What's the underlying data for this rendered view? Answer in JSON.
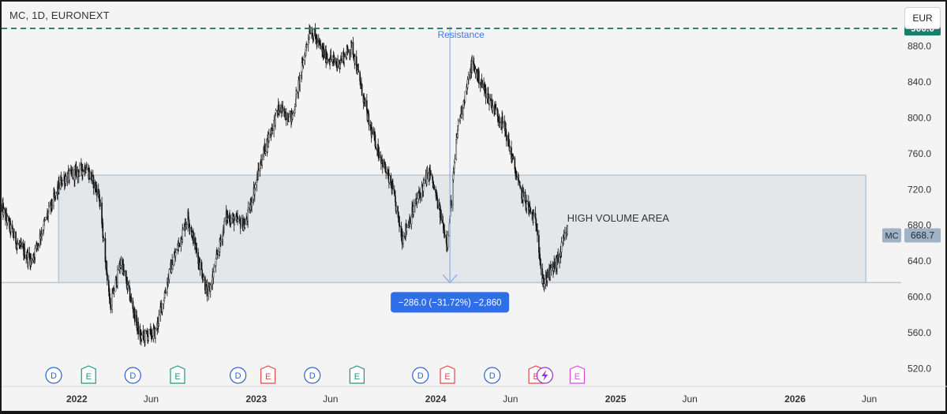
{
  "header": {
    "symbol_title": "MC, 1D, EURONEXT",
    "currency_label": "EUR"
  },
  "colors": {
    "candle": "#111111",
    "resistance_line": "#1a7d6e",
    "zone_fill": "#e3e7ea",
    "zone_stroke": "#b9c9d6",
    "measure": "#8fb0e6",
    "measure_label_bg": "#2f6ee6",
    "price_tag_resistance": "#1a7d6e",
    "price_tag_last": "#9fb2c6",
    "dividend": "#2f5fd6",
    "earnings_green": "#1e9a78",
    "earnings_red": "#e04a4a",
    "earnings_magenta": "#d94bd9",
    "split": "#9b2ad6"
  },
  "chart_data": {
    "type": "candlestick",
    "y_range": [
      500,
      930
    ],
    "x_range": [
      "2021-08-01",
      "2026-08-05"
    ],
    "y_ticks": [
      520,
      560,
      600,
      640,
      680,
      720,
      760,
      800,
      840,
      880
    ],
    "y_tick_labels": [
      "520.0",
      "560.0",
      "600.0",
      "640.0",
      "680.0",
      "720.0",
      "760.0",
      "800.0",
      "840.0",
      "880.0"
    ],
    "x_ticks": [
      {
        "date": "2022-01-01",
        "label": "2022",
        "bold": true
      },
      {
        "date": "2022-06-01",
        "label": "Jun",
        "bold": false
      },
      {
        "date": "2023-01-01",
        "label": "2023",
        "bold": true
      },
      {
        "date": "2023-06-01",
        "label": "Jun",
        "bold": false
      },
      {
        "date": "2024-01-01",
        "label": "2024",
        "bold": true
      },
      {
        "date": "2024-06-01",
        "label": "Jun",
        "bold": false
      },
      {
        "date": "2025-01-01",
        "label": "2025",
        "bold": true
      },
      {
        "date": "2025-06-01",
        "label": "Jun",
        "bold": false
      },
      {
        "date": "2026-01-01",
        "label": "2026",
        "bold": true
      },
      {
        "date": "2026-06-01",
        "label": "Jun",
        "bold": false
      }
    ],
    "price_path": [
      {
        "date": "2021-08-01",
        "price": 700
      },
      {
        "date": "2021-09-01",
        "price": 660
      },
      {
        "date": "2021-10-01",
        "price": 640
      },
      {
        "date": "2021-11-01",
        "price": 690
      },
      {
        "date": "2021-12-01",
        "price": 730
      },
      {
        "date": "2022-01-20",
        "price": 745
      },
      {
        "date": "2022-02-15",
        "price": 715
      },
      {
        "date": "2022-03-10",
        "price": 590
      },
      {
        "date": "2022-04-01",
        "price": 640
      },
      {
        "date": "2022-05-10",
        "price": 555
      },
      {
        "date": "2022-06-10",
        "price": 560
      },
      {
        "date": "2022-07-10",
        "price": 630
      },
      {
        "date": "2022-08-15",
        "price": 690
      },
      {
        "date": "2022-09-25",
        "price": 600
      },
      {
        "date": "2022-11-01",
        "price": 690
      },
      {
        "date": "2022-12-10",
        "price": 680
      },
      {
        "date": "2023-01-15",
        "price": 760
      },
      {
        "date": "2023-02-15",
        "price": 810
      },
      {
        "date": "2023-03-15",
        "price": 800
      },
      {
        "date": "2023-04-20",
        "price": 900
      },
      {
        "date": "2023-05-20",
        "price": 870
      },
      {
        "date": "2023-06-15",
        "price": 860
      },
      {
        "date": "2023-07-15",
        "price": 880
      },
      {
        "date": "2023-08-20",
        "price": 790
      },
      {
        "date": "2023-10-05",
        "price": 720
      },
      {
        "date": "2023-10-25",
        "price": 665
      },
      {
        "date": "2023-11-25",
        "price": 710
      },
      {
        "date": "2023-12-20",
        "price": 740
      },
      {
        "date": "2024-01-25",
        "price": 660
      },
      {
        "date": "2024-02-15",
        "price": 790
      },
      {
        "date": "2024-03-15",
        "price": 860
      },
      {
        "date": "2024-04-20",
        "price": 820
      },
      {
        "date": "2024-05-20",
        "price": 790
      },
      {
        "date": "2024-06-20",
        "price": 720
      },
      {
        "date": "2024-07-25",
        "price": 680
      },
      {
        "date": "2024-08-05",
        "price": 615
      },
      {
        "date": "2024-09-05",
        "price": 640
      },
      {
        "date": "2024-09-25",
        "price": 675
      }
    ],
    "resistance": {
      "price": 900,
      "label": "900.0"
    },
    "high_volume_zone": {
      "label": "HIGH VOLUME AREA",
      "start": "2021-11-25",
      "end": "2026-05-25",
      "top": 736,
      "bottom": 616
    },
    "measure": {
      "label": "Resistance",
      "date": "2024-01-30",
      "from": 902,
      "to": 616,
      "result": "−286.0 (−31.72%) −2,860"
    },
    "last_price": {
      "symbol": "MC",
      "price": 668.7,
      "label": "668.7"
    },
    "events": [
      {
        "type": "D",
        "date": "2021-11-15"
      },
      {
        "type": "E",
        "date": "2022-01-25",
        "color": "green"
      },
      {
        "type": "D",
        "date": "2022-04-25"
      },
      {
        "type": "E",
        "date": "2022-07-25",
        "color": "green"
      },
      {
        "type": "D",
        "date": "2022-11-25"
      },
      {
        "type": "E",
        "date": "2023-01-25",
        "color": "red"
      },
      {
        "type": "D",
        "date": "2023-04-25"
      },
      {
        "type": "E",
        "date": "2023-07-25",
        "color": "green"
      },
      {
        "type": "D",
        "date": "2023-12-01"
      },
      {
        "type": "E",
        "date": "2024-01-25",
        "color": "red"
      },
      {
        "type": "D",
        "date": "2024-04-25"
      },
      {
        "type": "E",
        "date": "2024-07-23",
        "color": "red"
      },
      {
        "type": "S",
        "date": "2024-08-10"
      },
      {
        "type": "E",
        "date": "2024-10-15",
        "color": "magenta"
      }
    ]
  }
}
